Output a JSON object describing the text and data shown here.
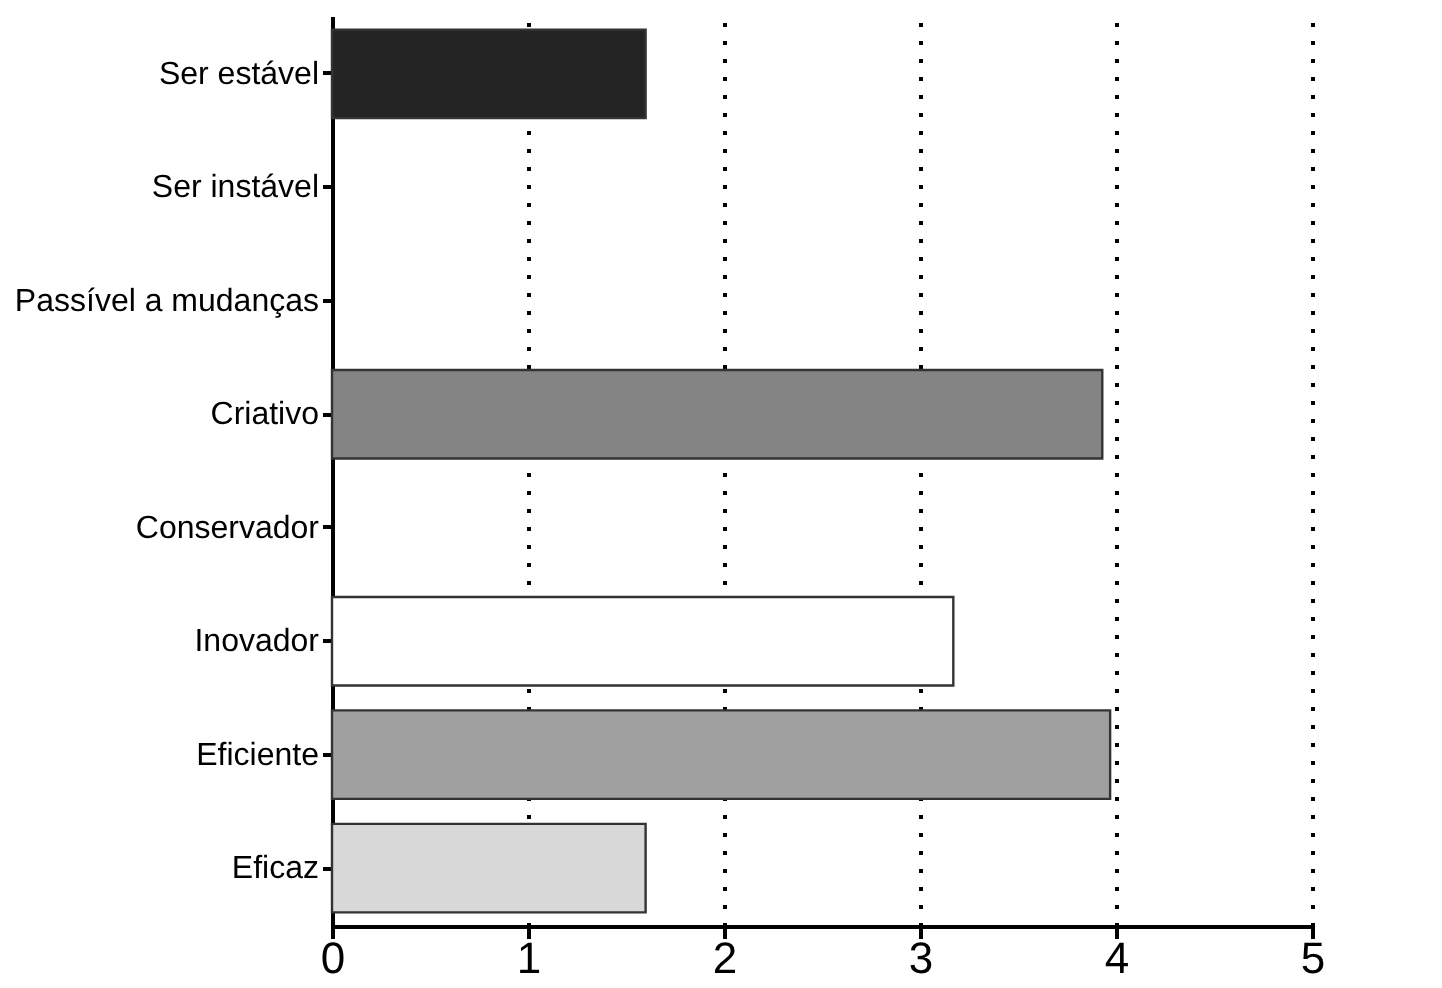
{
  "chart_data": {
    "type": "bar",
    "orientation": "horizontal",
    "categories": [
      "Ser estável",
      "Ser instável",
      "Passível a mudanças",
      "Criativo",
      "Conservador",
      "Inovador",
      "Eficiente",
      "Eficaz"
    ],
    "values": [
      1.6,
      0,
      0,
      3.93,
      0,
      3.17,
      3.97,
      1.6
    ],
    "colors": [
      "#242424",
      "#ffffff",
      "#ffffff",
      "#848484",
      "#ffffff",
      "#ffffff",
      "#a0a0a0",
      "#d8d8d8"
    ],
    "xlim": [
      0,
      5
    ],
    "xticks": [
      0,
      1,
      2,
      3,
      4,
      5
    ],
    "grid": "x"
  }
}
